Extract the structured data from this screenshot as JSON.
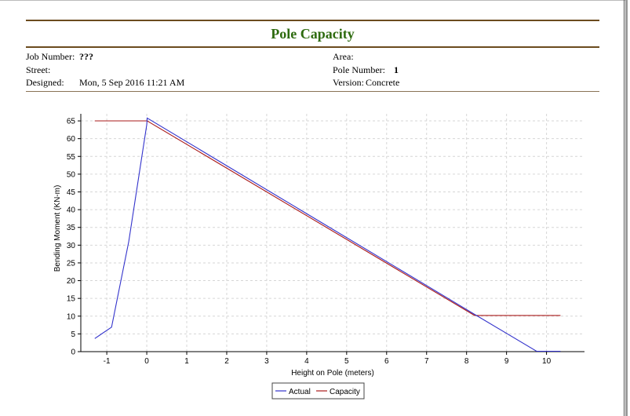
{
  "report": {
    "title": "Pole Capacity",
    "job_number_label": "Job Number:",
    "job_number": "???",
    "street_label": "Street:",
    "street": "",
    "designed_label": "Designed:",
    "designed": "Mon, 5 Sep 2016 11:21 AM",
    "area_label": "Area:",
    "area": "",
    "pole_number_label": "Pole Number:",
    "pole_number": "1",
    "version_label": "Version:",
    "version": "Concrete"
  },
  "colors": {
    "title": "#2e6b0f",
    "actual": "#3333cc",
    "capacity": "#aa1a1a",
    "rule": "#6b4b1e"
  },
  "chart_data": {
    "type": "line",
    "xlabel": "Height on Pole (meters)",
    "ylabel": "Bending Moment (KN-m)",
    "xlim": [
      -1.65,
      10.95
    ],
    "ylim": [
      0,
      67
    ],
    "xticks": [
      -1,
      0,
      1,
      2,
      3,
      4,
      5,
      6,
      7,
      8,
      9,
      10
    ],
    "yticks": [
      0,
      5,
      10,
      15,
      20,
      25,
      30,
      35,
      40,
      45,
      50,
      55,
      60,
      65
    ],
    "grid": true,
    "legend_position": "bottom-center",
    "series": [
      {
        "name": "Actual",
        "color": "#3333cc",
        "x": [
          -1.3,
          -0.88,
          -0.45,
          0.0,
          0.01,
          8.2,
          9.75,
          10.35
        ],
        "y": [
          3.7,
          6.9,
          31.0,
          64.0,
          65.8,
          10.5,
          0.1,
          0.1
        ]
      },
      {
        "name": "Capacity",
        "color": "#aa1a1a",
        "x": [
          -1.3,
          0.0,
          0.01,
          8.2,
          10.35
        ],
        "y": [
          65.0,
          65.0,
          65.0,
          10.2,
          10.2
        ]
      }
    ]
  }
}
